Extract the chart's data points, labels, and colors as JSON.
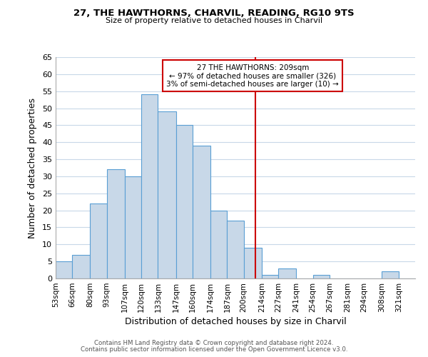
{
  "title1": "27, THE HAWTHORNS, CHARVIL, READING, RG10 9TS",
  "title2": "Size of property relative to detached houses in Charvil",
  "xlabel": "Distribution of detached houses by size in Charvil",
  "ylabel": "Number of detached properties",
  "bin_labels": [
    "53sqm",
    "66sqm",
    "80sqm",
    "93sqm",
    "107sqm",
    "120sqm",
    "133sqm",
    "147sqm",
    "160sqm",
    "174sqm",
    "187sqm",
    "200sqm",
    "214sqm",
    "227sqm",
    "241sqm",
    "254sqm",
    "267sqm",
    "281sqm",
    "294sqm",
    "308sqm",
    "321sqm"
  ],
  "bin_edges": [
    53,
    66,
    80,
    93,
    107,
    120,
    133,
    147,
    160,
    174,
    187,
    200,
    214,
    227,
    241,
    254,
    267,
    281,
    294,
    308,
    321,
    334
  ],
  "counts": [
    5,
    7,
    22,
    32,
    30,
    54,
    49,
    45,
    39,
    20,
    17,
    9,
    1,
    3,
    0,
    1,
    0,
    0,
    0,
    2,
    0
  ],
  "bar_color": "#c8d8e8",
  "bar_edgecolor": "#5a9fd4",
  "reference_line_x": 209,
  "reference_line_color": "#cc0000",
  "ylim": [
    0,
    65
  ],
  "yticks": [
    0,
    5,
    10,
    15,
    20,
    25,
    30,
    35,
    40,
    45,
    50,
    55,
    60,
    65
  ],
  "annotation_text": "27 THE HAWTHORNS: 209sqm\n← 97% of detached houses are smaller (326)\n3% of semi-detached houses are larger (10) →",
  "annotation_box_color": "#ffffff",
  "annotation_box_edgecolor": "#cc0000",
  "footer1": "Contains HM Land Registry data © Crown copyright and database right 2024.",
  "footer2": "Contains public sector information licensed under the Open Government Licence v3.0.",
  "background_color": "#ffffff",
  "grid_color": "#c8d8e8"
}
